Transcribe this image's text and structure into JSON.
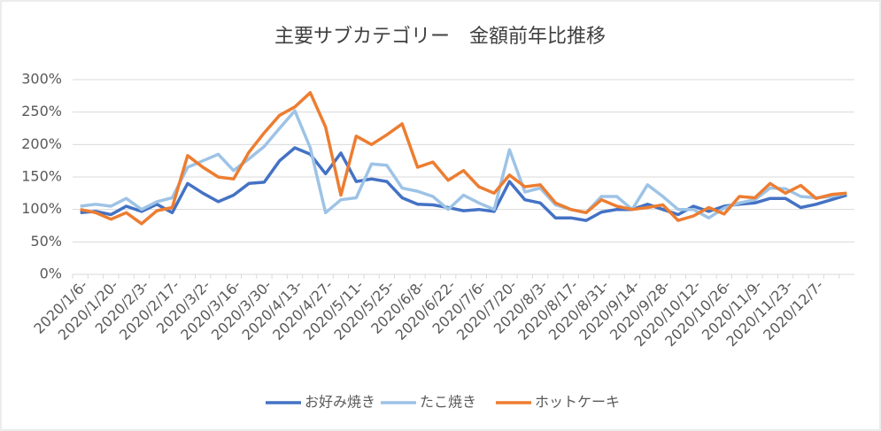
{
  "chart_data": {
    "type": "line",
    "title": "主要サブカテゴリー　金額前年比推移",
    "categories": [
      "2020/1/6-",
      null,
      "2020/1/20-",
      null,
      "2020/2/3-",
      null,
      "2020/2/17-",
      null,
      "2020/3/2-",
      null,
      "2020/3/16-",
      null,
      "2020/3/30-",
      null,
      "2020/4/13-",
      null,
      "2020/4/27-",
      null,
      "2020/5/11-",
      null,
      "2020/5/25-",
      null,
      "2020/6/8-",
      null,
      "2020/6/22-",
      null,
      "2020/7/6-",
      null,
      "2020/7/20-",
      null,
      "2020/8/3-",
      null,
      "2020/8/17-",
      null,
      "2020/8/31-",
      null,
      "2020/9/14-",
      null,
      "2020/9/28-",
      null,
      "2020/10/12-",
      null,
      "2020/10/26-",
      null,
      "2020/11/9-",
      null,
      "2020/11/23-",
      null,
      "2020/12/7-",
      null,
      null
    ],
    "series": [
      {
        "name": "お好み焼き",
        "color": "#4472c4",
        "values": [
          95,
          97,
          92,
          105,
          97,
          108,
          95,
          140,
          125,
          112,
          122,
          140,
          142,
          175,
          195,
          185,
          155,
          187,
          143,
          147,
          143,
          118,
          108,
          107,
          103,
          98,
          100,
          97,
          143,
          115,
          110,
          87,
          87,
          83,
          96,
          100,
          100,
          108,
          100,
          92,
          105,
          97,
          105,
          108,
          110,
          117,
          117,
          103,
          108,
          115,
          122
        ]
      },
      {
        "name": "たこ焼き",
        "color": "#9dc3e6",
        "values": [
          105,
          108,
          105,
          117,
          100,
          112,
          118,
          165,
          175,
          185,
          160,
          178,
          197,
          225,
          252,
          195,
          95,
          115,
          118,
          170,
          168,
          133,
          128,
          120,
          100,
          122,
          110,
          100,
          192,
          127,
          133,
          107,
          100,
          95,
          120,
          120,
          100,
          138,
          120,
          100,
          100,
          87,
          102,
          110,
          115,
          133,
          132,
          120,
          118,
          120,
          125
        ]
      },
      {
        "name": "ホットケーキ",
        "color": "#ed7d31",
        "values": [
          100,
          95,
          85,
          95,
          78,
          98,
          103,
          183,
          165,
          150,
          147,
          188,
          218,
          245,
          258,
          280,
          227,
          122,
          213,
          200,
          215,
          232,
          165,
          173,
          145,
          160,
          135,
          125,
          153,
          135,
          138,
          110,
          100,
          95,
          115,
          105,
          100,
          103,
          107,
          83,
          90,
          103,
          93,
          120,
          118,
          140,
          125,
          137,
          117,
          123,
          125
        ]
      }
    ],
    "ylim": [
      0,
      300
    ],
    "yticks": [
      {
        "value": 0,
        "label": "0%"
      },
      {
        "value": 50,
        "label": "50%"
      },
      {
        "value": 100,
        "label": "100%"
      },
      {
        "value": 150,
        "label": "150%"
      },
      {
        "value": 200,
        "label": "200%"
      },
      {
        "value": 250,
        "label": "250%"
      },
      {
        "value": 300,
        "label": "300%"
      }
    ],
    "grid": true
  }
}
